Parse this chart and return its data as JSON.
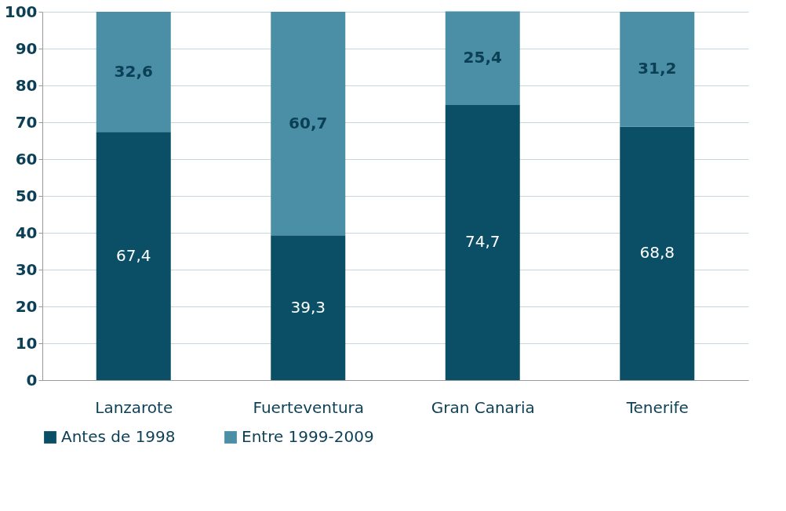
{
  "chart_data": {
    "type": "bar",
    "stacked": true,
    "categories": [
      "Lanzarote",
      "Fuerteventura",
      "Gran Canaria",
      "Tenerife"
    ],
    "series": [
      {
        "name": "Antes de 1998",
        "color": "#0b4f67",
        "values": [
          67.4,
          39.3,
          74.7,
          68.8
        ],
        "value_labels": [
          "67,4",
          "39,3",
          "74,7",
          "68,8"
        ]
      },
      {
        "name": "Entre 1999-2009",
        "color": "#4a8fa6",
        "values": [
          32.6,
          60.7,
          25.4,
          31.2
        ],
        "value_labels": [
          "32,6",
          "60,7",
          "25,4",
          "31,2"
        ]
      }
    ],
    "ylim": [
      0,
      100
    ],
    "yticks": [
      0,
      10,
      20,
      30,
      40,
      50,
      60,
      70,
      80,
      90,
      100
    ],
    "grid": "y",
    "legend": "bottom"
  }
}
